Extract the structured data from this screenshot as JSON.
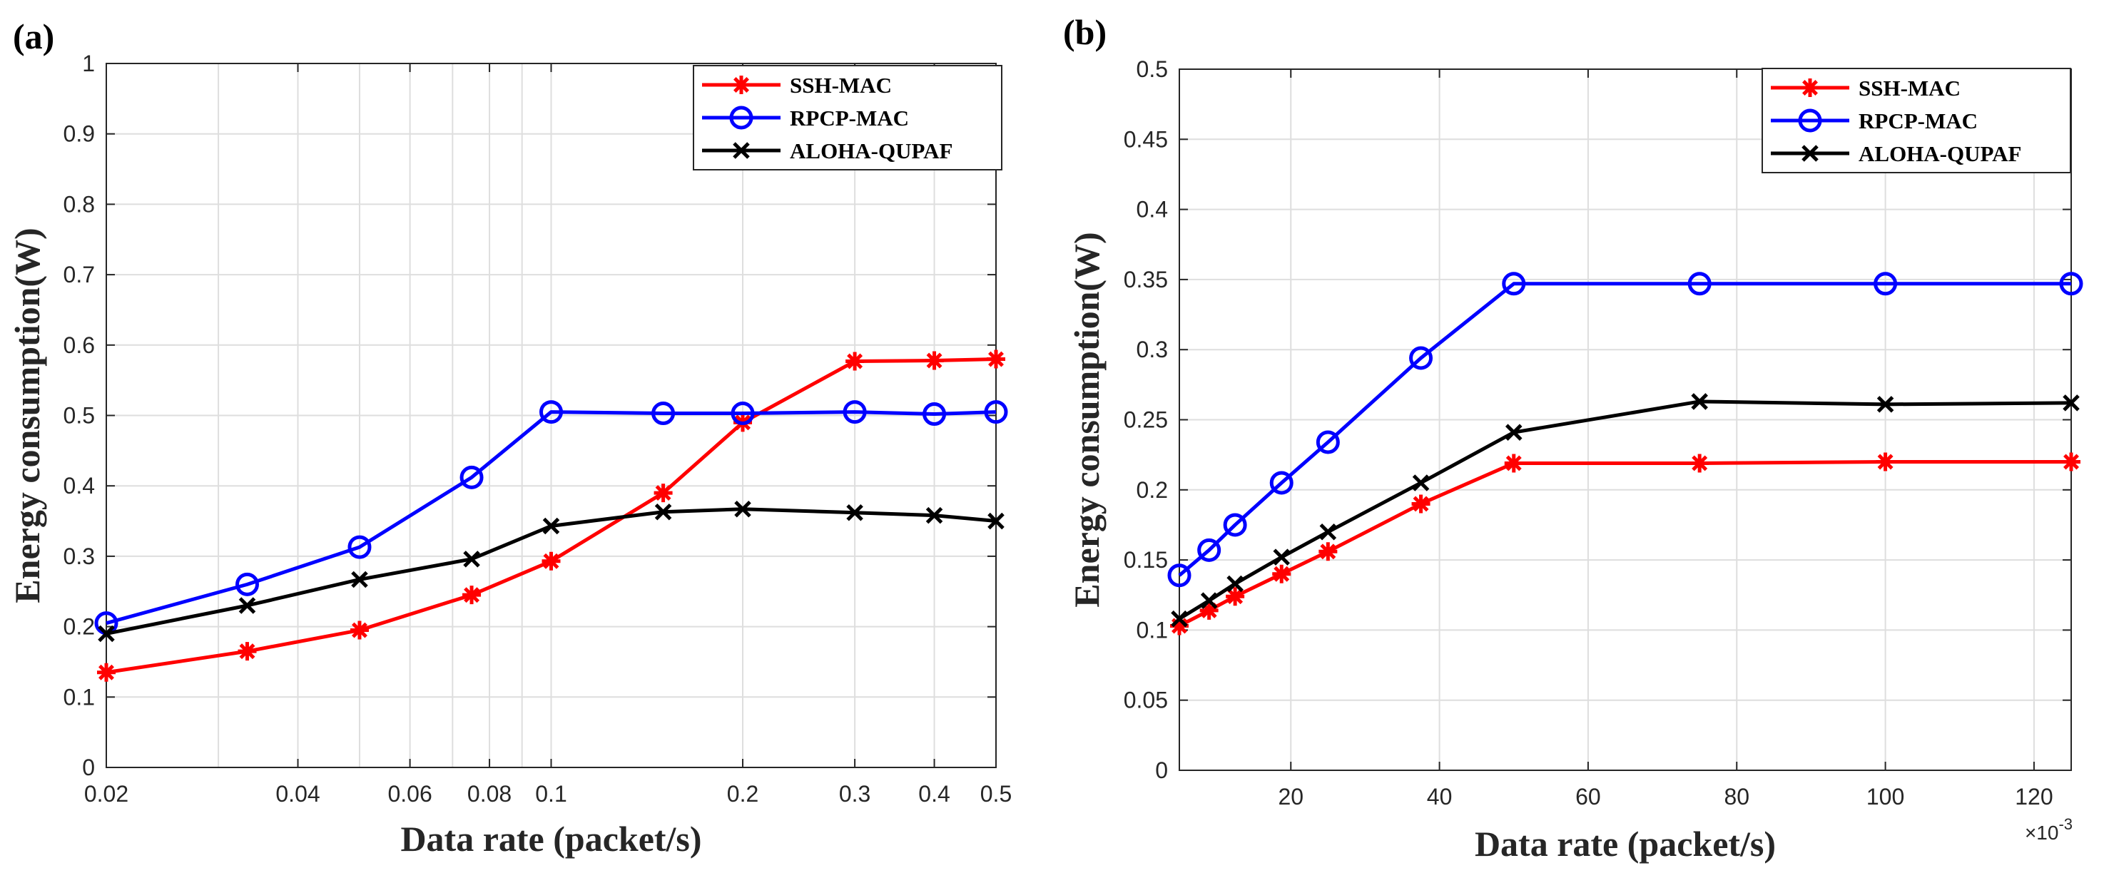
{
  "chart_data": [
    {
      "panel_label": "(a)",
      "type": "line",
      "xscale": "log",
      "xlabel": "Data rate (packet/s)",
      "ylabel": "Energy consumption(W)",
      "xlim": [
        0.02,
        0.5
      ],
      "ylim": [
        0,
        1
      ],
      "grid": true,
      "legend_position": "top-right",
      "xticks": [
        {
          "value": 0.02,
          "label": "0.02"
        },
        {
          "value": 0.04,
          "label": "0.04"
        },
        {
          "value": 0.06,
          "label": "0.06"
        },
        {
          "value": 0.08,
          "label": "0.08"
        },
        {
          "value": 0.1,
          "label": "0.1"
        },
        {
          "value": 0.2,
          "label": "0.2"
        },
        {
          "value": 0.3,
          "label": "0.3"
        },
        {
          "value": 0.4,
          "label": "0.4"
        },
        {
          "value": 0.5,
          "label": "0.5"
        }
      ],
      "xgrid_minor": [
        0.03,
        0.05,
        0.07,
        0.09
      ],
      "yticks": [
        {
          "value": 0,
          "label": "0"
        },
        {
          "value": 0.1,
          "label": "0.1"
        },
        {
          "value": 0.2,
          "label": "0.2"
        },
        {
          "value": 0.3,
          "label": "0.3"
        },
        {
          "value": 0.4,
          "label": "0.4"
        },
        {
          "value": 0.5,
          "label": "0.5"
        },
        {
          "value": 0.6,
          "label": "0.6"
        },
        {
          "value": 0.7,
          "label": "0.7"
        },
        {
          "value": 0.8,
          "label": "0.8"
        },
        {
          "value": 0.9,
          "label": "0.9"
        },
        {
          "value": 1,
          "label": "1"
        }
      ],
      "series": [
        {
          "name": "SSH-MAC",
          "color": "#ff0000",
          "marker": "asterisk",
          "x": [
            0.02,
            0.0333,
            0.05,
            0.075,
            0.1,
            0.15,
            0.2,
            0.3,
            0.4,
            0.5
          ],
          "values": [
            0.135,
            0.165,
            0.195,
            0.245,
            0.293,
            0.39,
            0.49,
            0.577,
            0.578,
            0.58
          ]
        },
        {
          "name": "RPCP-MAC",
          "color": "#0000ff",
          "marker": "circle",
          "x": [
            0.02,
            0.0333,
            0.05,
            0.075,
            0.1,
            0.15,
            0.2,
            0.3,
            0.4,
            0.5
          ],
          "values": [
            0.205,
            0.26,
            0.313,
            0.412,
            0.505,
            0.503,
            0.503,
            0.505,
            0.502,
            0.505
          ]
        },
        {
          "name": "ALOHA-QUPAF",
          "color": "#000000",
          "marker": "x",
          "x": [
            0.02,
            0.0333,
            0.05,
            0.075,
            0.1,
            0.15,
            0.2,
            0.3,
            0.4,
            0.5
          ],
          "values": [
            0.19,
            0.23,
            0.267,
            0.296,
            0.343,
            0.363,
            0.367,
            0.362,
            0.358,
            0.35
          ]
        }
      ]
    },
    {
      "panel_label": "(b)",
      "type": "line",
      "xscale": "linear",
      "xlabel": "Data rate (packet/s)",
      "ylabel": "Energy consumption(W)",
      "x_multiplier": "×10",
      "x_multiplier_exponent": "-3",
      "xlim": [
        5,
        125
      ],
      "ylim": [
        0,
        0.5
      ],
      "grid": true,
      "legend_position": "top-right",
      "xticks": [
        {
          "value": 20,
          "label": "20"
        },
        {
          "value": 40,
          "label": "40"
        },
        {
          "value": 60,
          "label": "60"
        },
        {
          "value": 80,
          "label": "80"
        },
        {
          "value": 100,
          "label": "100"
        },
        {
          "value": 120,
          "label": "120"
        }
      ],
      "yticks": [
        {
          "value": 0,
          "label": "0"
        },
        {
          "value": 0.05,
          "label": "0.05"
        },
        {
          "value": 0.1,
          "label": "0.1"
        },
        {
          "value": 0.15,
          "label": "0.15"
        },
        {
          "value": 0.2,
          "label": "0.2"
        },
        {
          "value": 0.25,
          "label": "0.25"
        },
        {
          "value": 0.3,
          "label": "0.3"
        },
        {
          "value": 0.35,
          "label": "0.35"
        },
        {
          "value": 0.4,
          "label": "0.4"
        },
        {
          "value": 0.45,
          "label": "0.45"
        },
        {
          "value": 0.5,
          "label": "0.5"
        }
      ],
      "series": [
        {
          "name": "SSH-MAC",
          "color": "#ff0000",
          "marker": "asterisk",
          "x": [
            5,
            9,
            12.5,
            18.75,
            25,
            37.5,
            50,
            75,
            100,
            125
          ],
          "values": [
            0.103,
            0.114,
            0.124,
            0.14,
            0.156,
            0.19,
            0.219,
            0.219,
            0.22,
            0.22
          ]
        },
        {
          "name": "RPCP-MAC",
          "color": "#0000ff",
          "marker": "circle",
          "x": [
            5,
            9,
            12.5,
            18.75,
            25,
            37.5,
            50,
            75,
            100,
            125
          ],
          "values": [
            0.139,
            0.157,
            0.175,
            0.205,
            0.234,
            0.294,
            0.347,
            0.347,
            0.347,
            0.347
          ]
        },
        {
          "name": "ALOHA-QUPAF",
          "color": "#000000",
          "marker": "x",
          "x": [
            5,
            9,
            12.5,
            18.75,
            25,
            37.5,
            50,
            75,
            100,
            125
          ],
          "values": [
            0.108,
            0.121,
            0.133,
            0.152,
            0.17,
            0.205,
            0.241,
            0.263,
            0.261,
            0.262
          ]
        }
      ]
    }
  ]
}
